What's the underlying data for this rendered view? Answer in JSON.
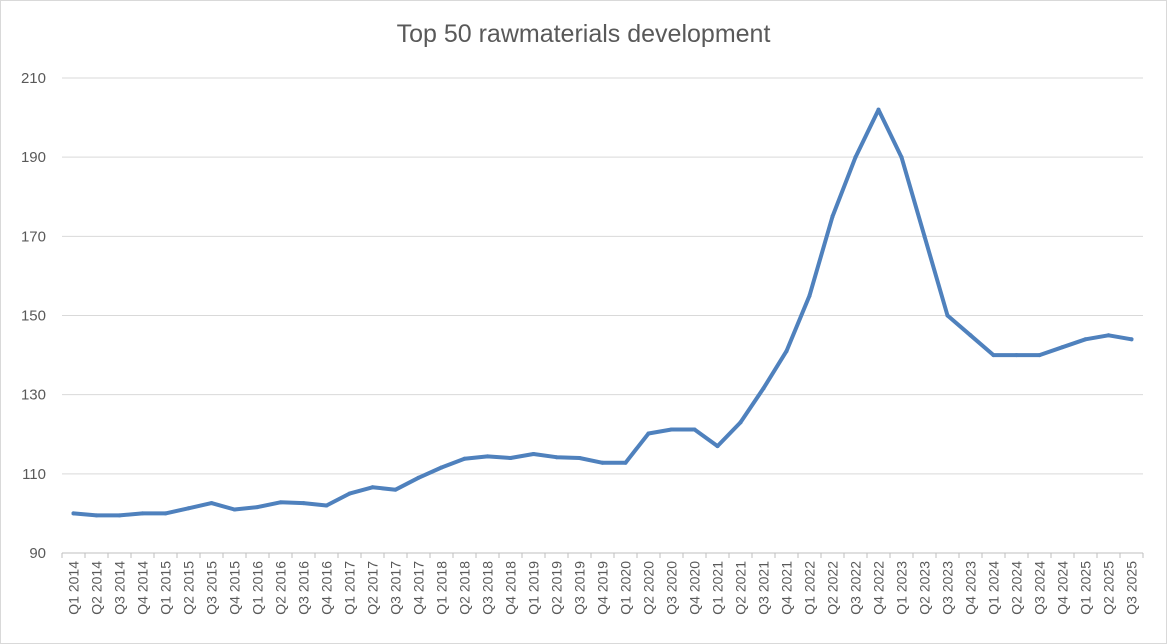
{
  "chart_data": {
    "type": "line",
    "title": "Top 50 rawmaterials development",
    "xlabel": "",
    "ylabel": "",
    "ylim": [
      90,
      210
    ],
    "yticks": [
      90,
      110,
      130,
      150,
      170,
      190,
      210
    ],
    "grid": true,
    "legend": "none",
    "line_color": "#4f81bd",
    "categories": [
      "Q1 2014",
      "Q2 2014",
      "Q3 2014",
      "Q4 2014",
      "Q1 2015",
      "Q2 2015",
      "Q3 2015",
      "Q4 2015",
      "Q1 2016",
      "Q2 2016",
      "Q3 2016",
      "Q4 2016",
      "Q1 2017",
      "Q2 2017",
      "Q3 2017",
      "Q4 2017",
      "Q1 2018",
      "Q2 2018",
      "Q3 2018",
      "Q4 2018",
      "Q1 2019",
      "Q2 2019",
      "Q3 2019",
      "Q4 2019",
      "Q1 2020",
      "Q2 2020",
      "Q3 2020",
      "Q4 2020",
      "Q1 2021",
      "Q2 2021",
      "Q3 2021",
      "Q4 2021",
      "Q1 2022",
      "Q2 2022",
      "Q3 2022",
      "Q4 2022",
      "Q1 2023",
      "Q2 2023",
      "Q3 2023",
      "Q4 2023",
      "Q1 2024",
      "Q2 2024",
      "Q3 2024",
      "Q4 2024",
      "Q1 2025",
      "Q2 2025",
      "Q3 2025"
    ],
    "series": [
      {
        "values": [
          100,
          99.5,
          99.5,
          100,
          100,
          101.3,
          102.6,
          101,
          101.6,
          102.8,
          102.6,
          102,
          105,
          106.6,
          106,
          109,
          111.6,
          113.8,
          114.4,
          114,
          115,
          114.2,
          114,
          112.8,
          112.8,
          120.2,
          121.2,
          121.2,
          117,
          123,
          131.6,
          141,
          155,
          175,
          190,
          202,
          190,
          170,
          150,
          145,
          140,
          140,
          140,
          142,
          144,
          145,
          144
        ]
      }
    ]
  }
}
